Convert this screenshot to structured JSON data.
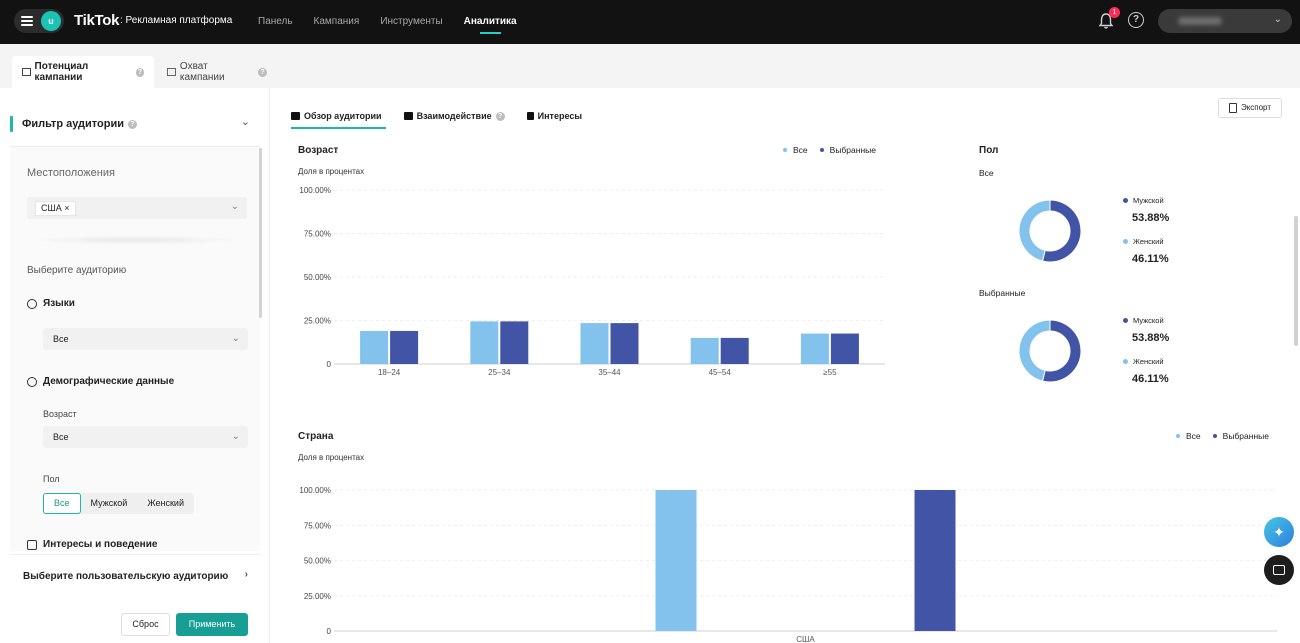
{
  "topbar": {
    "avatar_letter": "u",
    "brand": "TikTok",
    "brand_sub": ": Рекламная платформа",
    "nav": [
      "Панель",
      "Кампания",
      "Инструменты",
      "Аналитика"
    ],
    "active_nav": "Аналитика",
    "notification_count": "1",
    "help_icon": "?",
    "account_chevron": "⌄"
  },
  "subtabs": [
    "Потенциал кампании",
    "Охват кампании"
  ],
  "sidebar": {
    "title": "Фильтр аудитории",
    "locations_label": "Местоположения",
    "location_chip": "США ×",
    "audience_label": "Выберите аудиторию",
    "languages_label": "Языки",
    "languages_value": "Все",
    "demographics_label": "Демографические данные",
    "age_label": "Возраст",
    "age_value": "Все",
    "gender_label": "Пол",
    "gender_options": [
      "Все",
      "Мужской",
      "Женский"
    ],
    "interests_label": "Интересы и поведение",
    "custom_audience": "Выберите пользовательскую аудиторию",
    "reset": "Сброс",
    "apply": "Применить"
  },
  "main": {
    "tabs": [
      "Обзор аудитории",
      "Взаимодействие",
      "Интересы"
    ],
    "export": "Экспорт"
  },
  "colors": {
    "all": "#82c2ec",
    "selected": "#4254a6",
    "accent": "#1bb7a9"
  },
  "chart_data": [
    {
      "type": "bar",
      "title": "Возраст",
      "ylabel": "Доля в процентах",
      "categories": [
        "18–24",
        "25–34",
        "35–44",
        "45–54",
        "≥55"
      ],
      "series": [
        {
          "name": "Все",
          "values": [
            19,
            24.5,
            23.5,
            15,
            17.5
          ]
        },
        {
          "name": "Выбранные",
          "values": [
            19,
            24.5,
            23.5,
            15,
            17.5
          ]
        }
      ],
      "ylim": [
        0,
        100
      ],
      "yticks": [
        "0",
        "25.00%",
        "50.00%",
        "75.00%",
        "100.00%"
      ],
      "legend_placement": "top-right",
      "grid": true
    },
    {
      "type": "pie",
      "title": "Пол",
      "groups": [
        {
          "name": "Все",
          "slices": [
            {
              "label": "Мужской",
              "value": 53.88,
              "text": "53.88%"
            },
            {
              "label": "Женский",
              "value": 46.11,
              "text": "46.11%"
            }
          ]
        },
        {
          "name": "Выбранные",
          "slices": [
            {
              "label": "Мужской",
              "value": 53.88,
              "text": "53.88%"
            },
            {
              "label": "Женский",
              "value": 46.11,
              "text": "46.11%"
            }
          ]
        }
      ]
    },
    {
      "type": "bar",
      "title": "Страна",
      "ylabel": "Доля в процентах",
      "categories": [
        "США"
      ],
      "series": [
        {
          "name": "Все",
          "values": [
            100
          ]
        },
        {
          "name": "Выбранные",
          "values": [
            100
          ]
        }
      ],
      "ylim": [
        0,
        100
      ],
      "yticks": [
        "0",
        "25.00%",
        "50.00%",
        "75.00%",
        "100.00%"
      ],
      "legend_placement": "top-right",
      "grid": true
    }
  ]
}
